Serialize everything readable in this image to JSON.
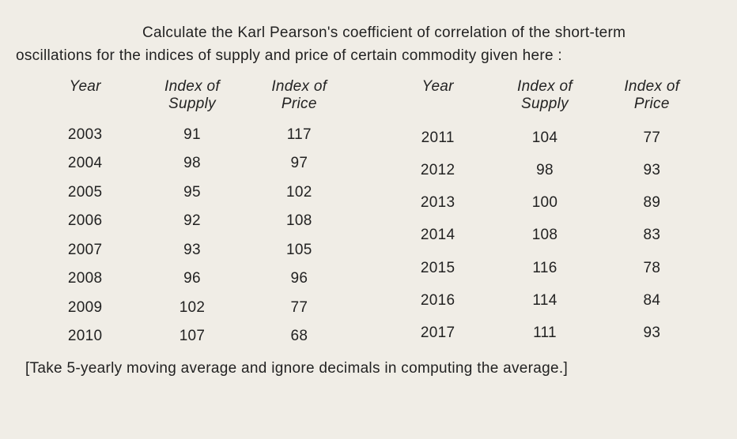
{
  "intro_l1": "Calculate the Karl Pearson's coefficient of correlation of the short-term",
  "intro_l2": "oscillations for the indices of supply and price of certain commodity given here :",
  "headers": {
    "year": "Year",
    "supply_l1": "Index of",
    "supply_l2": "Supply",
    "price_l1": "Index of",
    "price_l2": "Price"
  },
  "left_rows": [
    {
      "year": "2003",
      "supply": "91",
      "price": "117"
    },
    {
      "year": "2004",
      "supply": "98",
      "price": "97"
    },
    {
      "year": "2005",
      "supply": "95",
      "price": "102"
    },
    {
      "year": "2006",
      "supply": "92",
      "price": "108"
    },
    {
      "year": "2007",
      "supply": "93",
      "price": "105"
    },
    {
      "year": "2008",
      "supply": "96",
      "price": "96"
    },
    {
      "year": "2009",
      "supply": "102",
      "price": "77"
    },
    {
      "year": "2010",
      "supply": "107",
      "price": "68"
    }
  ],
  "right_rows": [
    {
      "year": "2011",
      "supply": "104",
      "price": "77"
    },
    {
      "year": "2012",
      "supply": "98",
      "price": "93"
    },
    {
      "year": "2013",
      "supply": "100",
      "price": "89"
    },
    {
      "year": "2014",
      "supply": "108",
      "price": "83"
    },
    {
      "year": "2015",
      "supply": "116",
      "price": "78"
    },
    {
      "year": "2016",
      "supply": "114",
      "price": "84"
    },
    {
      "year": "2017",
      "supply": "111",
      "price": "93"
    }
  ],
  "note": "[Take 5-yearly moving average and ignore decimals in computing the average.]",
  "style": {
    "background_color": "#f0ede6",
    "text_color": "#222222",
    "font_size_pt": 14,
    "header_font_style": "italic"
  }
}
